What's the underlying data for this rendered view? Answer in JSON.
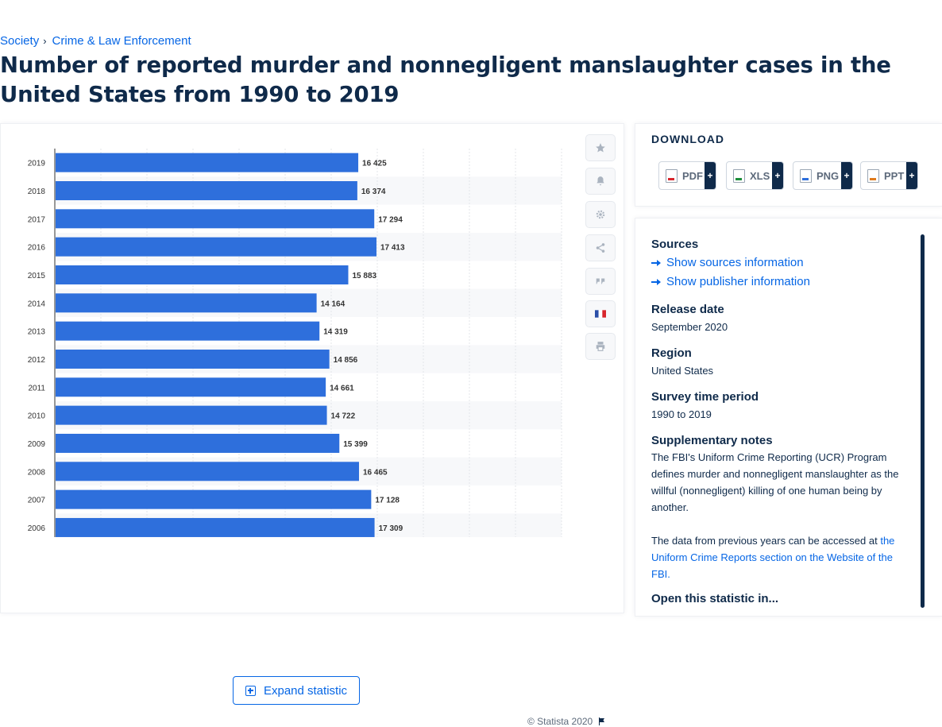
{
  "breadcrumb": {
    "items": [
      "Society",
      "Crime & Law Enforcement"
    ],
    "separator": "›"
  },
  "title": "Number of reported murder and nonnegligent manslaughter cases in the United States from 1990 to 2019",
  "chart_data": {
    "type": "bar",
    "orientation": "horizontal",
    "categories": [
      "2019",
      "2018",
      "2017",
      "2016",
      "2015",
      "2014",
      "2013",
      "2012",
      "2011",
      "2010",
      "2009",
      "2008",
      "2007",
      "2006"
    ],
    "values": [
      16425,
      16374,
      17294,
      17413,
      15883,
      14164,
      14319,
      14856,
      14661,
      14722,
      15399,
      16465,
      17128,
      17309
    ],
    "value_labels": [
      "16 425",
      "16 374",
      "17 294",
      "17 413",
      "15 883",
      "14 164",
      "14 319",
      "14 856",
      "14 661",
      "14 722",
      "15 399",
      "16 465",
      "17 128",
      "17 309"
    ],
    "xlim": [
      0,
      27500
    ],
    "grid": true,
    "bar_color": "#2e6fdc"
  },
  "side_tools": [
    "star-icon",
    "bell-icon",
    "gear-icon",
    "share-icon",
    "quote-icon",
    "flag-fr-icon",
    "print-icon"
  ],
  "expand_label": "Expand statistic",
  "copyright": "© Statista 2020",
  "download": {
    "title": "DOWNLOAD",
    "formats": [
      {
        "label": "PDF",
        "plus": "+",
        "color": "#d8262c"
      },
      {
        "label": "XLS",
        "plus": "+",
        "color": "#1d8f3b"
      },
      {
        "label": "PNG",
        "plus": "+",
        "color": "#2e6fdc"
      },
      {
        "label": "PPT",
        "plus": "+",
        "color": "#e07b1c"
      }
    ]
  },
  "info": {
    "sources_heading": "Sources",
    "show_sources": "Show sources information",
    "show_publisher": "Show publisher information",
    "release_heading": "Release date",
    "release_value": "September 2020",
    "region_heading": "Region",
    "region_value": "United States",
    "survey_heading": "Survey time period",
    "survey_value": "1990 to 2019",
    "notes_heading": "Supplementary notes",
    "notes_text": "The FBI's Uniform Crime Reporting (UCR) Program defines murder and nonnegligent manslaughter as the willful (nonnegligent) killing of one human being by another.",
    "notes_text2": "The data from previous years can be accessed at",
    "notes_link": "the Uniform Crime Reports section on the Website of the FBI.",
    "open_heading": "Open this statistic in..."
  }
}
